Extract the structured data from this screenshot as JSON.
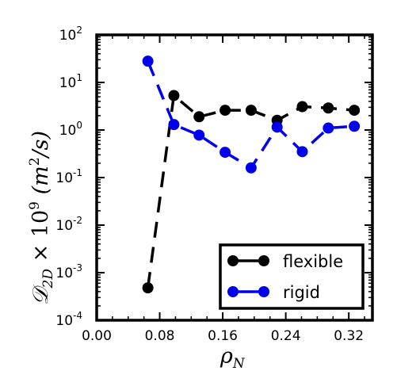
{
  "chart_data": {
    "type": "line",
    "title": "",
    "xlabel": "ρ_N",
    "ylabel": "D_2D × 10^9 (m^2/s)",
    "xlim": [
      0.0,
      0.35
    ],
    "ylim": [
      0.0001,
      100
    ],
    "yscale": "log",
    "grid": false,
    "legend_position": "lower-right",
    "x_ticks": [
      {
        "value": 0.0,
        "label": "0.00"
      },
      {
        "value": 0.08,
        "label": "0.08"
      },
      {
        "value": 0.16,
        "label": "0.16"
      },
      {
        "value": 0.24,
        "label": "0.24"
      },
      {
        "value": 0.32,
        "label": "0.32"
      }
    ],
    "y_ticks": [
      {
        "exp": 2,
        "base": "10",
        "sup": "2"
      },
      {
        "exp": 1,
        "base": "10",
        "sup": "1"
      },
      {
        "exp": 0,
        "base": "10",
        "sup": "0"
      },
      {
        "exp": -1,
        "base": "10",
        "sup": "-1"
      },
      {
        "exp": -2,
        "base": "10",
        "sup": "-2"
      },
      {
        "exp": -3,
        "base": "10",
        "sup": "-3"
      },
      {
        "exp": -4,
        "base": "10",
        "sup": "-4"
      }
    ],
    "series": [
      {
        "name": "flexible",
        "color": "#000000",
        "x": [
          0.065,
          0.098,
          0.13,
          0.163,
          0.196,
          0.229,
          0.261,
          0.294,
          0.327
        ],
        "values": [
          0.00048,
          5.3,
          1.9,
          2.6,
          2.6,
          1.6,
          3.1,
          2.9,
          2.6
        ]
      },
      {
        "name": "rigid",
        "color": "#0000ee",
        "x": [
          0.065,
          0.098,
          0.13,
          0.163,
          0.196,
          0.229,
          0.261,
          0.294,
          0.327
        ],
        "values": [
          28,
          1.3,
          0.78,
          0.34,
          0.16,
          1.15,
          0.35,
          1.1,
          1.2
        ]
      }
    ]
  }
}
